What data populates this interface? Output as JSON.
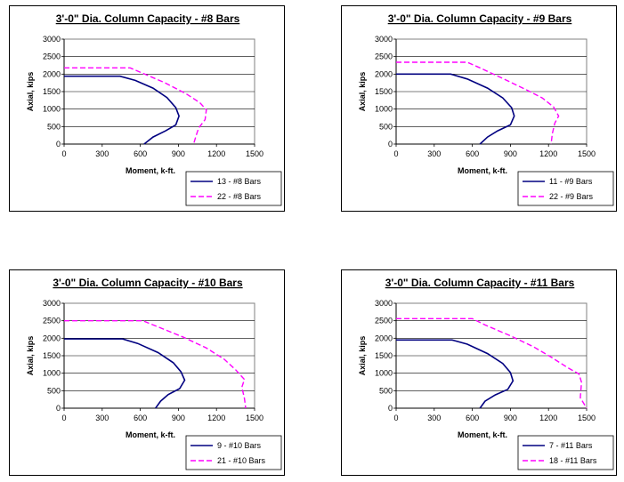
{
  "chart_data": [
    {
      "type": "line",
      "title": "3'-0\" Dia. Column Capacity - #8 Bars",
      "xlabel": "Moment, k-ft.",
      "ylabel": "Axial, kips",
      "xlim": [
        0,
        1500
      ],
      "ylim": [
        0,
        3000
      ],
      "xticks": [
        "0",
        "300",
        "600",
        "900",
        "1200",
        "1500"
      ],
      "yticks": [
        "0",
        "500",
        "1000",
        "1500",
        "2000",
        "2500",
        "3000"
      ],
      "legend": "bottom-right",
      "series": [
        {
          "name": "13 - #8 Bars",
          "color": "#000080",
          "dash": "solid",
          "points": [
            [
              0,
              1940
            ],
            [
              440,
              1940
            ],
            [
              560,
              1820
            ],
            [
              700,
              1600
            ],
            [
              810,
              1330
            ],
            [
              880,
              1040
            ],
            [
              905,
              800
            ],
            [
              880,
              550
            ],
            [
              800,
              380
            ],
            [
              700,
              200
            ],
            [
              630,
              0
            ]
          ]
        },
        {
          "name": "22 - #8 Bars",
          "color": "#ff00ff",
          "dash": "dashed",
          "points": [
            [
              0,
              2180
            ],
            [
              520,
              2180
            ],
            [
              610,
              2040
            ],
            [
              790,
              1760
            ],
            [
              960,
              1440
            ],
            [
              1070,
              1180
            ],
            [
              1120,
              980
            ],
            [
              1110,
              700
            ],
            [
              1060,
              460
            ],
            [
              1040,
              250
            ],
            [
              1020,
              0
            ]
          ]
        }
      ]
    },
    {
      "type": "line",
      "title": "3'-0\" Dia. Column Capacity - #9 Bars",
      "xlabel": "Moment, k-ft.",
      "ylabel": "Axial, kips",
      "xlim": [
        0,
        1500
      ],
      "ylim": [
        0,
        3000
      ],
      "xticks": [
        "0",
        "300",
        "600",
        "900",
        "1200",
        "1500"
      ],
      "yticks": [
        "0",
        "500",
        "1000",
        "1500",
        "2000",
        "2500",
        "3000"
      ],
      "legend": "bottom-right",
      "series": [
        {
          "name": "11 - #9 Bars",
          "color": "#000080",
          "dash": "solid",
          "points": [
            [
              0,
              2000
            ],
            [
              430,
              2000
            ],
            [
              560,
              1860
            ],
            [
              720,
              1600
            ],
            [
              840,
              1320
            ],
            [
              910,
              1040
            ],
            [
              930,
              800
            ],
            [
              900,
              550
            ],
            [
              800,
              380
            ],
            [
              720,
              200
            ],
            [
              660,
              0
            ]
          ]
        },
        {
          "name": "22 - #9 Bars",
          "color": "#ff00ff",
          "dash": "dashed",
          "points": [
            [
              0,
              2340
            ],
            [
              560,
              2340
            ],
            [
              660,
              2180
            ],
            [
              860,
              1840
            ],
            [
              1020,
              1560
            ],
            [
              1150,
              1320
            ],
            [
              1240,
              1060
            ],
            [
              1280,
              800
            ],
            [
              1250,
              600
            ],
            [
              1230,
              300
            ],
            [
              1220,
              0
            ]
          ]
        }
      ]
    },
    {
      "type": "line",
      "title": "3'-0\" Dia. Column Capacity - #10 Bars",
      "xlabel": "Moment, k-ft.",
      "ylabel": "Axial, kips",
      "xlim": [
        0,
        1500
      ],
      "ylim": [
        0,
        3000
      ],
      "xticks": [
        "0",
        "300",
        "600",
        "900",
        "1200",
        "1500"
      ],
      "yticks": [
        "0",
        "500",
        "1000",
        "1500",
        "2000",
        "2500",
        "3000"
      ],
      "legend": "bottom-right",
      "series": [
        {
          "name": "9 - #10 Bars",
          "color": "#000080",
          "dash": "solid",
          "points": [
            [
              0,
              1980
            ],
            [
              460,
              1980
            ],
            [
              580,
              1850
            ],
            [
              740,
              1590
            ],
            [
              860,
              1300
            ],
            [
              920,
              1040
            ],
            [
              950,
              800
            ],
            [
              910,
              560
            ],
            [
              820,
              390
            ],
            [
              760,
              200
            ],
            [
              720,
              0
            ]
          ]
        },
        {
          "name": "21 - #10 Bars",
          "color": "#ff00ff",
          "dash": "dashed",
          "points": [
            [
              0,
              2500
            ],
            [
              620,
              2500
            ],
            [
              730,
              2340
            ],
            [
              940,
              2030
            ],
            [
              1120,
              1720
            ],
            [
              1260,
              1400
            ],
            [
              1350,
              1100
            ],
            [
              1420,
              820
            ],
            [
              1400,
              600
            ],
            [
              1420,
              280
            ],
            [
              1430,
              0
            ]
          ]
        }
      ]
    },
    {
      "type": "line",
      "title": "3'-0\" Dia. Column Capacity - #11 Bars",
      "xlabel": "Moment, k-ft.",
      "ylabel": "Axial, kips",
      "xlim": [
        0,
        1500
      ],
      "ylim": [
        0,
        3000
      ],
      "xticks": [
        "0",
        "300",
        "600",
        "900",
        "1200",
        "1500"
      ],
      "yticks": [
        "0",
        "500",
        "1000",
        "1500",
        "2000",
        "2500",
        "3000"
      ],
      "legend": "bottom-right",
      "series": [
        {
          "name": "7 - #11 Bars",
          "color": "#000080",
          "dash": "solid",
          "points": [
            [
              0,
              1950
            ],
            [
              440,
              1950
            ],
            [
              560,
              1830
            ],
            [
              720,
              1560
            ],
            [
              840,
              1280
            ],
            [
              900,
              1020
            ],
            [
              920,
              780
            ],
            [
              880,
              540
            ],
            [
              780,
              380
            ],
            [
              700,
              200
            ],
            [
              660,
              0
            ]
          ]
        },
        {
          "name": "18 - #11 Bars",
          "color": "#ff00ff",
          "dash": "dashed",
          "points": [
            [
              0,
              2560
            ],
            [
              600,
              2560
            ],
            [
              700,
              2380
            ],
            [
              900,
              2070
            ],
            [
              1080,
              1760
            ],
            [
              1230,
              1440
            ],
            [
              1350,
              1160
            ],
            [
              1440,
              980
            ],
            [
              1460,
              740
            ],
            [
              1450,
              300
            ],
            [
              1500,
              0
            ]
          ]
        }
      ]
    }
  ]
}
